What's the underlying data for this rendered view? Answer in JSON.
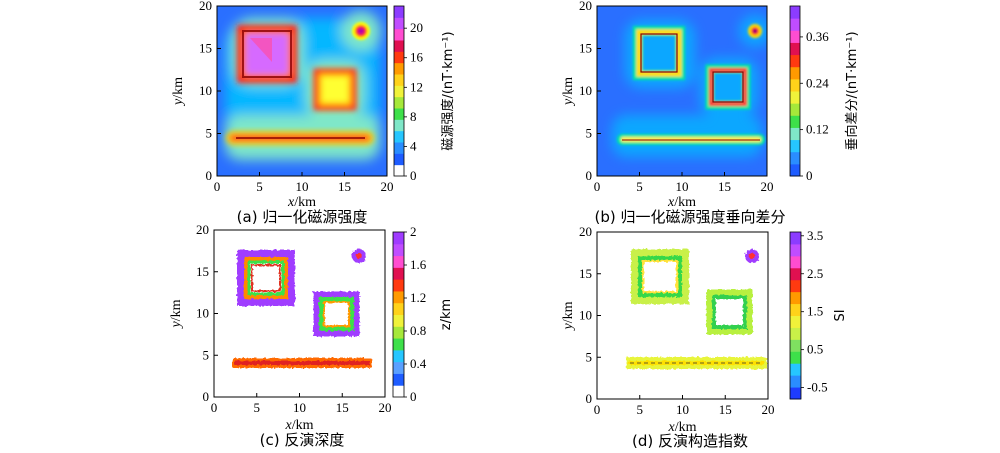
{
  "chart_data": [
    {
      "type": "heatmap",
      "caption": "(a) 归一化磁源强度",
      "xlabel_var": "x",
      "xlabel_unit": "/km",
      "ylabel_var": "y",
      "ylabel_unit": "/km",
      "xlim": [
        0,
        20
      ],
      "ylim": [
        0,
        20
      ],
      "xticks": [
        "0",
        "5",
        "10",
        "15",
        "20"
      ],
      "yticks": [
        "0",
        "5",
        "10",
        "15",
        "20"
      ],
      "colorbar": {
        "label": "磁源强度/(nT·km⁻¹)",
        "ticks": [
          "0",
          "4",
          "8",
          "12",
          "16",
          "20"
        ],
        "range": [
          0,
          23
        ]
      },
      "background_color": "#2a6fff",
      "shapes": [
        {
          "kind": "square",
          "x": [
            3,
            8
          ],
          "y": [
            12,
            17
          ],
          "note": "hollow square body"
        },
        {
          "kind": "square",
          "x": [
            11.5,
            15
          ],
          "y": [
            8,
            12.5
          ],
          "note": "hollow square body"
        },
        {
          "kind": "point",
          "x": 17,
          "y": 17
        },
        {
          "kind": "line",
          "x": [
            1.5,
            18
          ],
          "y": 4
        }
      ]
    },
    {
      "type": "heatmap",
      "caption": "(b) 归一化磁源强度垂向差分",
      "xlabel_var": "x",
      "xlabel_unit": "/km",
      "ylabel_var": "y",
      "ylabel_unit": "/km",
      "xlim": [
        0,
        20
      ],
      "ylim": [
        0,
        20
      ],
      "xticks": [
        "0",
        "5",
        "10",
        "15",
        "20"
      ],
      "yticks": [
        "0",
        "5",
        "10",
        "15",
        "20"
      ],
      "colorbar": {
        "label": "垂向差分/(nT·km⁻¹)",
        "ticks": [
          "0",
          "0.12",
          "0.24",
          "0.36"
        ],
        "range": [
          0,
          0.44
        ]
      },
      "background_color": "#2a6fff"
    },
    {
      "type": "scatter",
      "caption": "(c) 反演深度",
      "xlabel_var": "x",
      "xlabel_unit": "/km",
      "ylabel_var": "y",
      "ylabel_unit": "/km",
      "xlim": [
        0,
        20
      ],
      "ylim": [
        0,
        20
      ],
      "xticks": [
        "0",
        "5",
        "10",
        "15",
        "20"
      ],
      "yticks": [
        "0",
        "5",
        "10",
        "15",
        "20"
      ],
      "colorbar": {
        "label": "z/km",
        "ticks": [
          "0",
          "0.4",
          "0.8",
          "1.2",
          "1.6",
          "2"
        ],
        "range": [
          0,
          2
        ]
      },
      "background_color": "#ffffff"
    },
    {
      "type": "scatter",
      "caption": "(d) 反演构造指数",
      "xlabel_var": "x",
      "xlabel_unit": "/km",
      "ylabel_var": "y",
      "ylabel_unit": "/km",
      "xlim": [
        0,
        20
      ],
      "ylim": [
        0,
        20
      ],
      "xticks": [
        "0",
        "5",
        "10",
        "15",
        "20"
      ],
      "yticks": [
        "0",
        "5",
        "10",
        "15",
        "20"
      ],
      "colorbar": {
        "label": "SI",
        "ticks": [
          "-0.5",
          "0.5",
          "1.5",
          "2.5",
          "3.5"
        ],
        "range": [
          -0.8,
          3.6
        ]
      },
      "background_color": "#ffffff"
    }
  ]
}
